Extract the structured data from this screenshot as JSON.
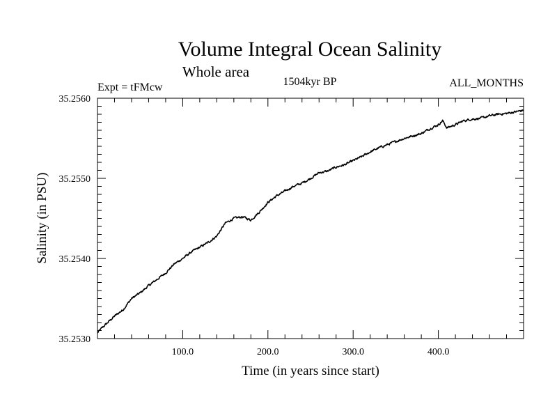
{
  "chart_data": {
    "type": "line",
    "title": "Volume Integral Ocean Salinity",
    "subtitle": "Whole area",
    "experiment": "Expt = tFMcw",
    "period": "1504kyr BP",
    "months": "ALL_MONTHS",
    "xlabel": "Time (in years since start)",
    "ylabel": "Salinity (in PSU)",
    "xlim": [
      0,
      500
    ],
    "ylim": [
      35.253,
      35.256
    ],
    "xticks": [
      100,
      200,
      300,
      400
    ],
    "xtick_labels": [
      "100.0",
      "200.0",
      "300.0",
      "400.0"
    ],
    "yticks": [
      35.253,
      35.254,
      35.255,
      35.256
    ],
    "ytick_labels": [
      "35.2530",
      "35.2540",
      "35.2550",
      "35.2560"
    ],
    "series": [
      {
        "name": "Salinity",
        "x": [
          0,
          5,
          10,
          20,
          30,
          40,
          50,
          60,
          70,
          80,
          90,
          100,
          110,
          120,
          130,
          140,
          150,
          160,
          170,
          180,
          190,
          200,
          210,
          220,
          230,
          240,
          250,
          260,
          270,
          280,
          290,
          300,
          310,
          320,
          330,
          340,
          350,
          360,
          370,
          380,
          390,
          400,
          405,
          410,
          420,
          430,
          440,
          450,
          460,
          470,
          480,
          490,
          500
        ],
        "values": [
          35.25307,
          35.25313,
          35.25318,
          35.25328,
          35.25336,
          35.2535,
          35.25357,
          35.25366,
          35.25374,
          35.25382,
          35.25393,
          35.254,
          35.25408,
          35.25414,
          35.2542,
          35.25428,
          35.25444,
          35.2545,
          35.25452,
          35.25448,
          35.25458,
          35.2547,
          35.25478,
          35.25484,
          35.2549,
          35.25494,
          35.255,
          35.25507,
          35.25509,
          35.25514,
          35.25517,
          35.25522,
          35.25527,
          35.25533,
          35.25538,
          35.25542,
          35.25546,
          35.2555,
          35.25553,
          35.25556,
          35.25562,
          35.25567,
          35.25572,
          35.25563,
          35.25567,
          35.25572,
          35.25574,
          35.25575,
          35.25578,
          35.2558,
          35.25581,
          35.25583,
          35.25585
        ]
      }
    ]
  }
}
